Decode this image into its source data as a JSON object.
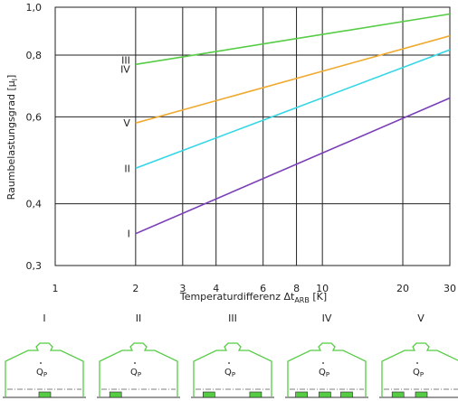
{
  "chart_data": {
    "type": "line",
    "x_scale": "log",
    "y_scale": "log",
    "xlabel": "Temperaturdifferenz Δt",
    "xlabel_sub": "ARB",
    "xlabel_unit": " [K]",
    "ylabel": "Raumbelastungsgrad [μ",
    "ylabel_sub": "l",
    "ylabel_end": "]",
    "xlim": [
      1,
      30
    ],
    "ylim": [
      0.3,
      1.0
    ],
    "x_ticks": [
      {
        "value": 1,
        "label": "1"
      },
      {
        "value": 2,
        "label": "2"
      },
      {
        "value": 3,
        "label": "3"
      },
      {
        "value": 4,
        "label": "4"
      },
      {
        "value": 6,
        "label": "6"
      },
      {
        "value": 8,
        "label": "8"
      },
      {
        "value": 10,
        "label": "10"
      },
      {
        "value": 20,
        "label": "20"
      },
      {
        "value": 30,
        "label": "30"
      }
    ],
    "x_gridlines": [
      2,
      3,
      4,
      6,
      8,
      10,
      20
    ],
    "y_ticks": [
      {
        "value": 0.3,
        "label": "0,3"
      },
      {
        "value": 0.4,
        "label": "0,4"
      },
      {
        "value": 0.6,
        "label": "0,6"
      },
      {
        "value": 0.8,
        "label": "0,8"
      },
      {
        "value": 1.0,
        "label": "1,0"
      }
    ],
    "y_gridlines": [
      0.4,
      0.6,
      0.8
    ],
    "grid": true,
    "series": [
      {
        "name": "I",
        "color": "#7b3fb8",
        "x": [
          2,
          30
        ],
        "y": [
          0.348,
          0.655
        ]
      },
      {
        "name": "II",
        "color": "#33d6e6",
        "x": [
          2,
          30
        ],
        "y": [
          0.472,
          0.82
        ]
      },
      {
        "name": "V",
        "color": "#f0aa30",
        "x": [
          2,
          30
        ],
        "y": [
          0.583,
          0.875
        ]
      },
      {
        "name": "IV",
        "color": "#55cc44",
        "x": [
          2,
          30
        ],
        "y": [
          0.766,
          0.969
        ]
      }
    ],
    "series_labels": [
      {
        "text": "III",
        "x": 2,
        "y": 0.781,
        "color": "#55cc44"
      },
      {
        "text": "IV",
        "x": 2,
        "y": 0.75,
        "color": "#55cc44"
      },
      {
        "text": "V",
        "x": 2,
        "y": 0.583,
        "color": "#f0aa30"
      },
      {
        "text": "II",
        "x": 2,
        "y": 0.472,
        "color": "#33d6e6"
      },
      {
        "text": "I",
        "x": 2,
        "y": 0.348,
        "color": "#7b3fb8"
      }
    ]
  },
  "rooms": {
    "q_symbol": "Q",
    "q_sub": "P",
    "color": "#55cc44",
    "items": [
      {
        "label": "I",
        "sources": "center"
      },
      {
        "label": "II",
        "sources": "left"
      },
      {
        "label": "III",
        "sources": "sides"
      },
      {
        "label": "IV",
        "sources": "spread"
      },
      {
        "label": "V",
        "sources": "leftpair"
      }
    ]
  }
}
